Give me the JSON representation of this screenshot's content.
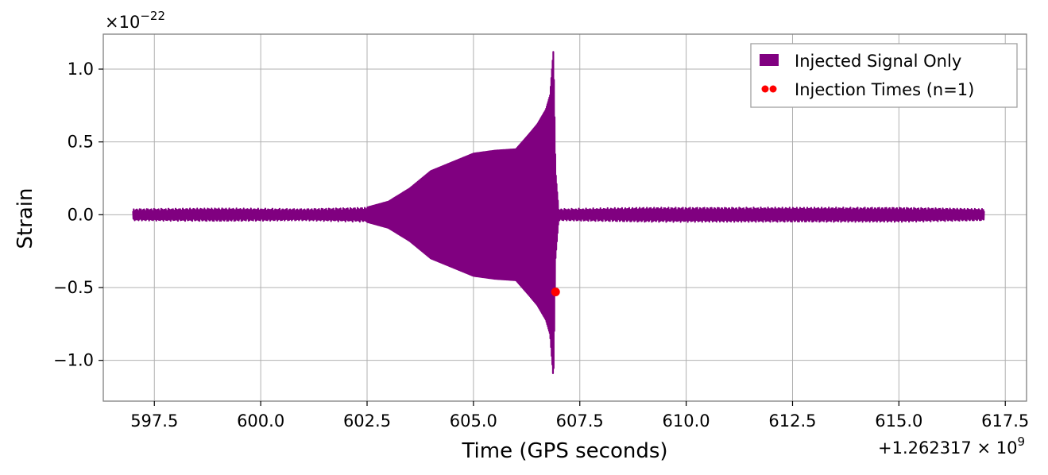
{
  "chart_data": {
    "type": "line",
    "xlabel": "Time (GPS seconds)",
    "ylabel": "Strain",
    "x_offset_label": "+1.262317 × 10",
    "x_offset_exp": "9",
    "y_scale_label": "×10",
    "y_scale_exp": "−22",
    "xlim": [
      596.3,
      618.0
    ],
    "ylim": [
      -1.28,
      1.24
    ],
    "x_ticks": [
      597.5,
      600.0,
      602.5,
      605.0,
      607.5,
      610.0,
      612.5,
      615.0,
      617.5
    ],
    "x_tick_labels": [
      "597.5",
      "600.0",
      "602.5",
      "605.0",
      "607.5",
      "610.0",
      "612.5",
      "615.0",
      "617.5"
    ],
    "y_ticks": [
      -1.0,
      -0.5,
      0.0,
      0.5,
      1.0
    ],
    "y_tick_labels": [
      "−1.0",
      "−0.5",
      "0.0",
      "0.5",
      "1.0"
    ],
    "grid": true,
    "legend_position": "top-right",
    "series": [
      {
        "name": "Injected Signal Only",
        "color": "#800080",
        "envelope": {
          "x": [
            597.0,
            599.0,
            601.0,
            602.5,
            603.0,
            603.5,
            604.0,
            604.5,
            605.0,
            605.5,
            606.0,
            606.3,
            606.5,
            606.7,
            606.8,
            606.88,
            606.93,
            607.0,
            609.0,
            612.0,
            615.0,
            617.0
          ],
          "amplitude": [
            0.04,
            0.045,
            0.04,
            0.05,
            0.09,
            0.18,
            0.3,
            0.36,
            0.42,
            0.44,
            0.45,
            0.55,
            0.62,
            0.72,
            0.82,
            1.13,
            0.3,
            0.04,
            0.05,
            0.05,
            0.05,
            0.04
          ]
        }
      },
      {
        "name": "Injection Times (n=1)",
        "color": "#ff0000",
        "type": "scatter",
        "points": [
          {
            "x": 606.93,
            "y": -0.53
          }
        ]
      }
    ]
  }
}
